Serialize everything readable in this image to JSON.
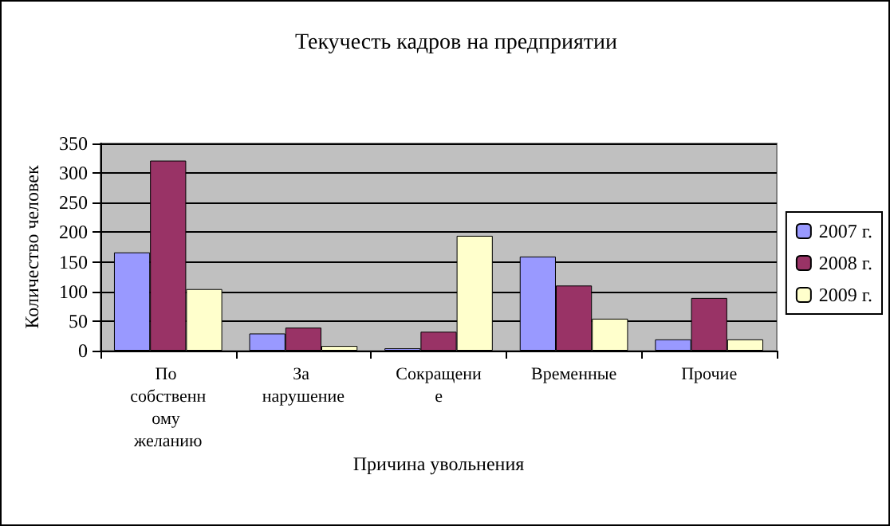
{
  "chart_data": {
    "type": "bar",
    "title": "Текучесть кадров на предприятии",
    "xlabel": "Причина увольнения",
    "ylabel": "Количество человек",
    "categories": [
      "По собственному желанию",
      "За нарушение",
      "Сокращение",
      "Временные",
      "Прочие"
    ],
    "series": [
      {
        "name": "2007 г.",
        "color": "#9999ff",
        "values": [
          166,
          29,
          4,
          159,
          19
        ]
      },
      {
        "name": "2008 г.",
        "color": "#993366",
        "values": [
          321,
          39,
          32,
          110,
          89
        ]
      },
      {
        "name": "2009 г.",
        "color": "#ffffcc",
        "values": [
          104,
          8,
          194,
          54,
          19
        ]
      }
    ],
    "ylim": [
      0,
      350
    ],
    "yticks": [
      0,
      50,
      100,
      150,
      200,
      250,
      300,
      350
    ],
    "grid": "y",
    "legend": "right"
  }
}
